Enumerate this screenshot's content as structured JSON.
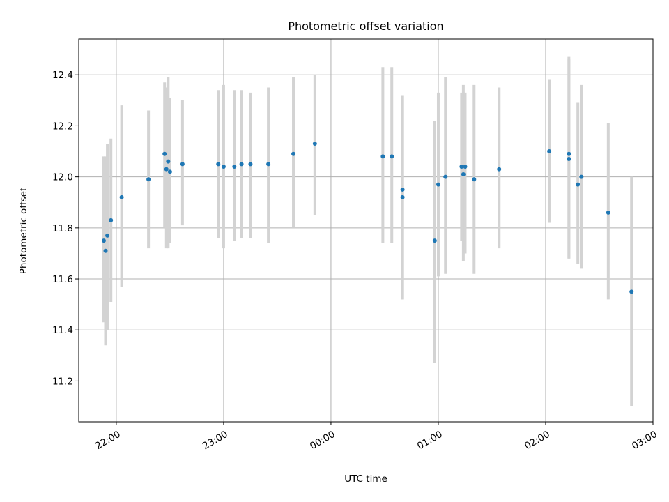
{
  "chart_data": {
    "type": "scatter",
    "title": "Photometric offset variation",
    "xlabel": "UTC time",
    "ylabel": "Photometric offset",
    "x_ticks": [
      "22:00",
      "23:00",
      "00:00",
      "01:00",
      "02:00",
      "03:00"
    ],
    "y_ticks": [
      "11.2",
      "11.4",
      "11.6",
      "11.8",
      "12.0",
      "12.2",
      "12.4"
    ],
    "xlim": [
      "21:39",
      "03:00"
    ],
    "ylim": [
      11.04,
      12.54
    ],
    "grid": true,
    "legend": "none",
    "colors": {
      "point": "#1f77b4",
      "errorbar": "#d3d3d3",
      "grid": "#b0b0b0"
    },
    "points": [
      {
        "x": "21:53",
        "y": 11.75,
        "low": 11.43,
        "high": 12.08
      },
      {
        "x": "21:54",
        "y": 11.71,
        "low": 11.34,
        "high": 12.08
      },
      {
        "x": "21:55",
        "y": 11.77,
        "low": 11.4,
        "high": 12.13
      },
      {
        "x": "21:57",
        "y": 11.83,
        "low": 11.51,
        "high": 12.15
      },
      {
        "x": "22:03",
        "y": 11.92,
        "low": 11.57,
        "high": 12.28
      },
      {
        "x": "22:18",
        "y": 11.99,
        "low": 11.72,
        "high": 12.26
      },
      {
        "x": "22:27",
        "y": 12.09,
        "low": 11.8,
        "high": 12.37
      },
      {
        "x": "22:28",
        "y": 12.03,
        "low": 11.72,
        "high": 12.35
      },
      {
        "x": "22:29",
        "y": 12.06,
        "low": 11.72,
        "high": 12.39
      },
      {
        "x": "22:30",
        "y": 12.02,
        "low": 11.74,
        "high": 12.31
      },
      {
        "x": "22:37",
        "y": 12.05,
        "low": 11.81,
        "high": 12.3
      },
      {
        "x": "22:57",
        "y": 12.05,
        "low": 11.76,
        "high": 12.34
      },
      {
        "x": "23:00",
        "y": 12.04,
        "low": 11.72,
        "high": 12.36
      },
      {
        "x": "23:06",
        "y": 12.04,
        "low": 11.75,
        "high": 12.34
      },
      {
        "x": "23:10",
        "y": 12.05,
        "low": 11.76,
        "high": 12.34
      },
      {
        "x": "23:15",
        "y": 12.05,
        "low": 11.76,
        "high": 12.33
      },
      {
        "x": "23:25",
        "y": 12.05,
        "low": 11.74,
        "high": 12.35
      },
      {
        "x": "23:39",
        "y": 12.09,
        "low": 11.8,
        "high": 12.39
      },
      {
        "x": "23:51",
        "y": 12.13,
        "low": 11.85,
        "high": 12.4
      },
      {
        "x": "00:29",
        "y": 12.08,
        "low": 11.74,
        "high": 12.43
      },
      {
        "x": "00:34",
        "y": 12.08,
        "low": 11.74,
        "high": 12.43
      },
      {
        "x": "00:40",
        "y": 11.95,
        "low": 11.52,
        "high": 12.32
      },
      {
        "x": "00:40",
        "y": 11.92,
        "low": 11.52,
        "high": 12.32
      },
      {
        "x": "00:58",
        "y": 11.75,
        "low": 11.27,
        "high": 12.22
      },
      {
        "x": "01:00",
        "y": 11.97,
        "low": 11.61,
        "high": 12.33
      },
      {
        "x": "01:04",
        "y": 12.0,
        "low": 11.62,
        "high": 12.39
      },
      {
        "x": "01:13",
        "y": 12.04,
        "low": 11.75,
        "high": 12.33
      },
      {
        "x": "01:14",
        "y": 12.01,
        "low": 11.67,
        "high": 12.36
      },
      {
        "x": "01:15",
        "y": 12.04,
        "low": 11.7,
        "high": 12.33
      },
      {
        "x": "01:20",
        "y": 11.99,
        "low": 11.62,
        "high": 12.36
      },
      {
        "x": "01:34",
        "y": 12.03,
        "low": 11.72,
        "high": 12.35
      },
      {
        "x": "02:02",
        "y": 12.1,
        "low": 11.82,
        "high": 12.38
      },
      {
        "x": "02:13",
        "y": 12.09,
        "low": 11.68,
        "high": 12.47
      },
      {
        "x": "02:13",
        "y": 12.07,
        "low": 11.68,
        "high": 12.46
      },
      {
        "x": "02:18",
        "y": 11.97,
        "low": 11.66,
        "high": 12.29
      },
      {
        "x": "02:20",
        "y": 12.0,
        "low": 11.64,
        "high": 12.36
      },
      {
        "x": "02:35",
        "y": 11.86,
        "low": 11.52,
        "high": 12.21
      },
      {
        "x": "02:48",
        "y": 11.55,
        "low": 11.1,
        "high": 12.0
      }
    ]
  }
}
